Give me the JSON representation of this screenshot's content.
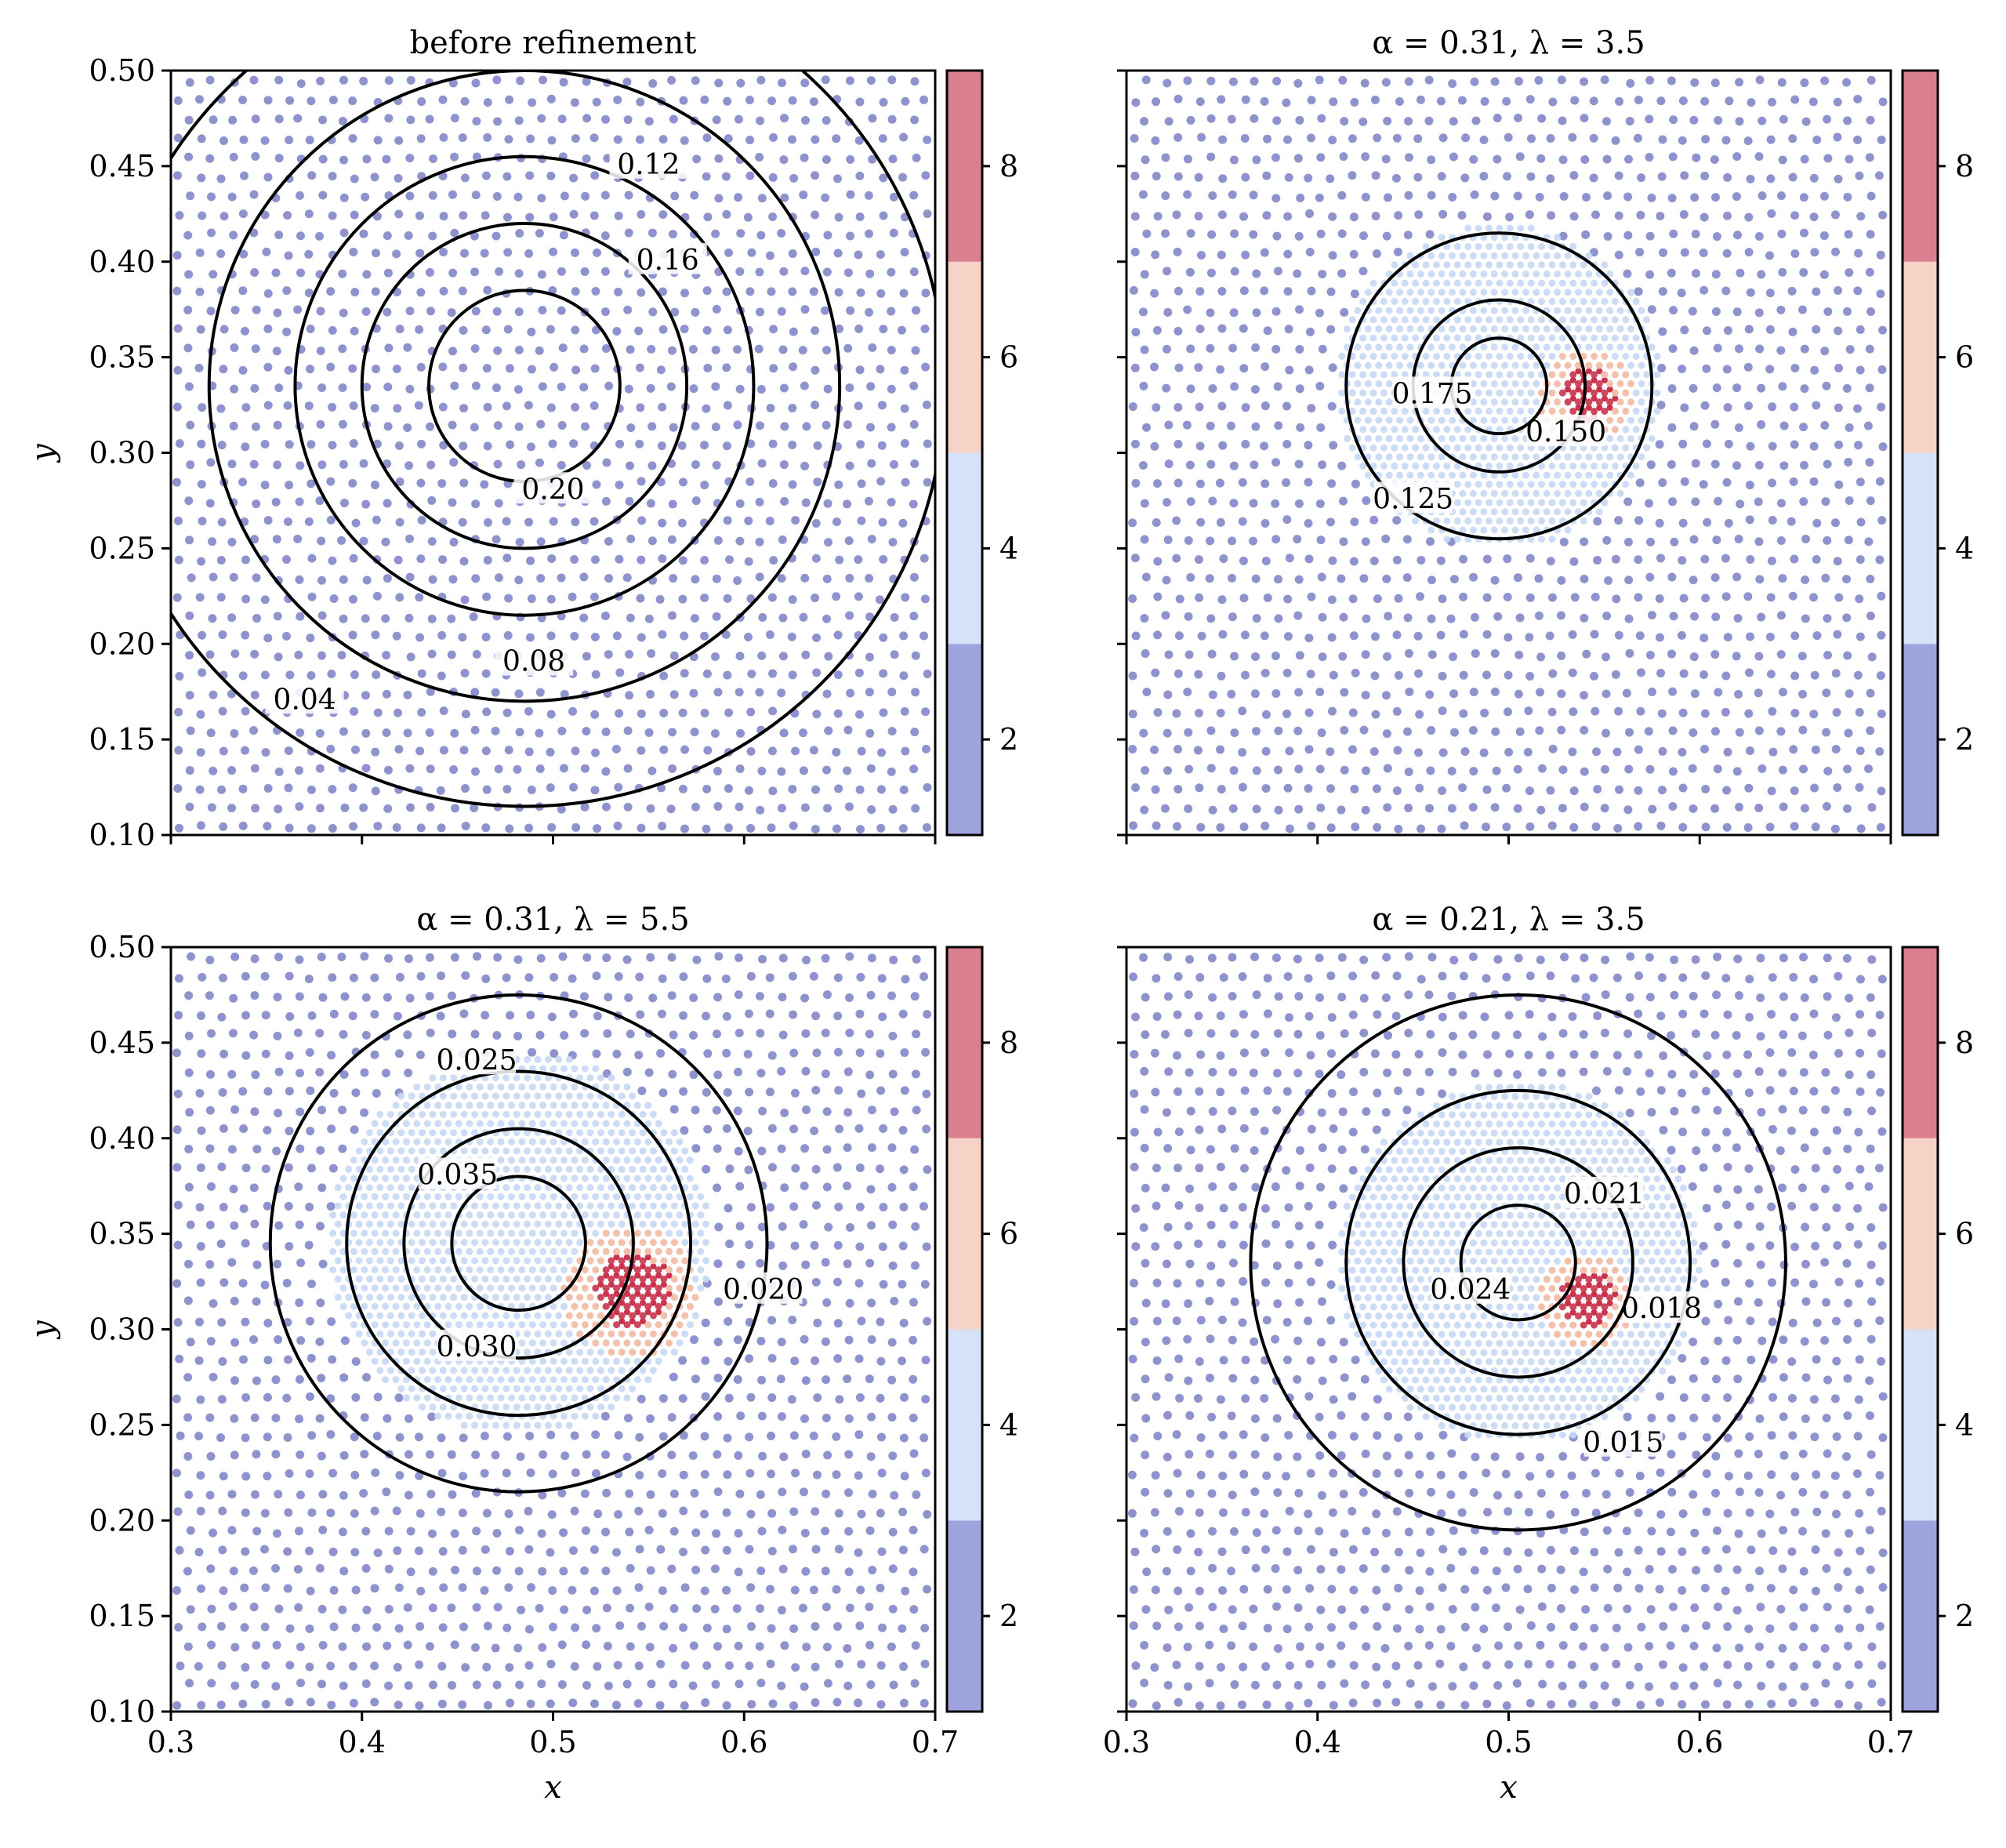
{
  "chart_data": [
    {
      "type": "contour-scatter",
      "title": "before refinement",
      "xlabel": "",
      "ylabel": "y",
      "xlim": [
        0.3,
        0.7
      ],
      "ylim": [
        0.1,
        0.5
      ],
      "x_ticks": [
        0.3,
        0.4,
        0.5,
        0.6,
        0.7
      ],
      "x_tick_labels": [],
      "y_ticks": [
        0.1,
        0.15,
        0.2,
        0.25,
        0.3,
        0.35,
        0.4,
        0.45,
        0.5
      ],
      "y_tick_labels": [
        "0.10",
        "0.15",
        "0.20",
        "0.25",
        "0.30",
        "0.35",
        "0.40",
        "0.45",
        "0.50"
      ],
      "center": [
        0.485,
        0.335
      ],
      "elongation": [
        1.0,
        1.0
      ],
      "refinement": null,
      "contours": [
        {
          "level": "0.04",
          "r": 0.22,
          "label_at": [
            0.37,
            0.17
          ]
        },
        {
          "level": "0.08",
          "r": 0.165,
          "label_at": [
            0.49,
            0.19
          ]
        },
        {
          "level": "0.12",
          "r": 0.12,
          "label_at": [
            0.55,
            0.45
          ]
        },
        {
          "level": "0.16",
          "r": 0.085,
          "label_at": [
            0.56,
            0.4
          ]
        },
        {
          "level": "0.20",
          "r": 0.05,
          "label_at": [
            0.5,
            0.28
          ]
        }
      ],
      "colorbar": {
        "ticks": [
          "2",
          "4",
          "6",
          "8"
        ],
        "range": [
          1,
          9
        ],
        "bands": [
          "#9fa3dd",
          "#d5e2f8",
          "#f6d3c6",
          "#d97f8e"
        ]
      }
    },
    {
      "type": "contour-scatter",
      "title": "α = 0.31, λ = 3.5",
      "xlabel": "",
      "ylabel": "",
      "xlim": [
        0.3,
        0.7
      ],
      "ylim": [
        0.1,
        0.5
      ],
      "x_ticks": [
        0.3,
        0.4,
        0.5,
        0.6,
        0.7
      ],
      "x_tick_labels": [],
      "y_ticks": [
        0.1,
        0.15,
        0.2,
        0.25,
        0.3,
        0.35,
        0.4,
        0.45,
        0.5
      ],
      "y_tick_labels": [],
      "center": [
        0.495,
        0.335
      ],
      "elongation": [
        1.0,
        1.0
      ],
      "refinement": {
        "radius": 0.085,
        "hot_center": [
          0.54,
          0.33
        ],
        "hot_radius": 0.025,
        "max_level": 8
      },
      "contours": [
        {
          "level": "0.125",
          "r": 0.08,
          "label_at": [
            0.45,
            0.275
          ]
        },
        {
          "level": "0.150",
          "r": 0.045,
          "label_at": [
            0.53,
            0.31
          ]
        },
        {
          "level": "0.175",
          "r": 0.025,
          "label_at": [
            0.46,
            0.33
          ]
        }
      ],
      "colorbar": {
        "ticks": [
          "2",
          "4",
          "6",
          "8"
        ],
        "range": [
          1,
          9
        ],
        "bands": [
          "#9fa3dd",
          "#d5e2f8",
          "#f6d3c6",
          "#d97f8e"
        ]
      }
    },
    {
      "type": "contour-scatter",
      "title": "α = 0.31, λ = 5.5",
      "xlabel": "x",
      "ylabel": "y",
      "xlim": [
        0.3,
        0.7
      ],
      "ylim": [
        0.1,
        0.5
      ],
      "x_ticks": [
        0.3,
        0.4,
        0.5,
        0.6,
        0.7
      ],
      "x_tick_labels": [
        "0.3",
        "0.4",
        "0.5",
        "0.6",
        "0.7"
      ],
      "y_ticks": [
        0.1,
        0.15,
        0.2,
        0.25,
        0.3,
        0.35,
        0.4,
        0.45,
        0.5
      ],
      "y_tick_labels": [
        "0.10",
        "0.15",
        "0.20",
        "0.25",
        "0.30",
        "0.35",
        "0.40",
        "0.45",
        "0.50"
      ],
      "center": [
        0.482,
        0.345
      ],
      "elongation": [
        1.0,
        1.0
      ],
      "refinement": {
        "radius": 0.1,
        "hot_center": [
          0.54,
          0.32
        ],
        "hot_radius": 0.035,
        "max_level": 8
      },
      "contours": [
        {
          "level": "0.020",
          "r": 0.13,
          "label_at": [
            0.61,
            0.32
          ]
        },
        {
          "level": "0.025",
          "r": 0.09,
          "label_at": [
            0.46,
            0.44
          ]
        },
        {
          "level": "0.030",
          "r": 0.06,
          "label_at": [
            0.46,
            0.29
          ]
        },
        {
          "level": "0.035",
          "r": 0.035,
          "label_at": [
            0.45,
            0.38
          ]
        }
      ],
      "colorbar": {
        "ticks": [
          "2",
          "4",
          "6",
          "8"
        ],
        "range": [
          1,
          9
        ],
        "bands": [
          "#9fa3dd",
          "#d5e2f8",
          "#f6d3c6",
          "#d97f8e"
        ]
      }
    },
    {
      "type": "contour-scatter",
      "title": "α = 0.21, λ = 3.5",
      "xlabel": "x",
      "ylabel": "",
      "xlim": [
        0.3,
        0.7
      ],
      "ylim": [
        0.1,
        0.5
      ],
      "x_ticks": [
        0.3,
        0.4,
        0.5,
        0.6,
        0.7
      ],
      "x_tick_labels": [
        "0.3",
        "0.4",
        "0.5",
        "0.6",
        "0.7"
      ],
      "y_ticks": [
        0.1,
        0.15,
        0.2,
        0.25,
        0.3,
        0.35,
        0.4,
        0.45,
        0.5
      ],
      "y_tick_labels": [],
      "center": [
        0.505,
        0.335
      ],
      "elongation": [
        1.0,
        1.0
      ],
      "refinement": {
        "radius": 0.095,
        "hot_center": [
          0.54,
          0.315
        ],
        "hot_radius": 0.025,
        "max_level": 8
      },
      "contours": [
        {
          "level": "0.015",
          "r": 0.14,
          "label_at": [
            0.56,
            0.24
          ]
        },
        {
          "level": "0.018",
          "r": 0.09,
          "label_at": [
            0.58,
            0.31
          ]
        },
        {
          "level": "0.021",
          "r": 0.06,
          "label_at": [
            0.55,
            0.37
          ]
        },
        {
          "level": "0.024",
          "r": 0.03,
          "label_at": [
            0.48,
            0.32
          ]
        }
      ],
      "colorbar": {
        "ticks": [
          "2",
          "4",
          "6",
          "8"
        ],
        "range": [
          1,
          9
        ],
        "bands": [
          "#9fa3dd",
          "#d5e2f8",
          "#f6d3c6",
          "#d97f8e"
        ]
      }
    }
  ],
  "colors": {
    "coarse_point": "#7b80c4",
    "fine_point": "#c7d8f3",
    "mid_point": "#f2b9a3",
    "hot_point": "#c8344e",
    "contour": "#000000"
  }
}
